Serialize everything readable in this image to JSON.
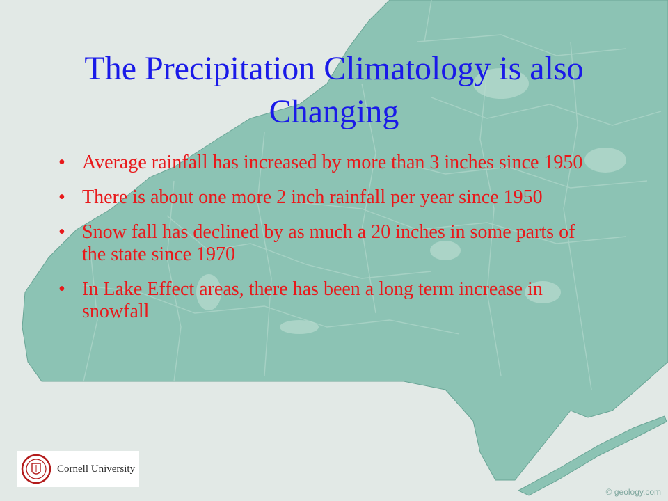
{
  "slide": {
    "title": "The Precipitation Climatology is also Changing",
    "bullets": [
      "Average rainfall has increased by more than 3 inches since 1950",
      "There is about one more 2 inch rainfall per year since 1950",
      "Snow fall has declined by as much a 20 inches in some parts of the state since 1970",
      "In Lake Effect areas, there has been a long term increase in snowfall"
    ],
    "bullet_glyph": "•",
    "logo_text": "Cornell University",
    "watermark": "© geology.com"
  },
  "colors": {
    "title": "#1a1ae8",
    "bullet_text": "#e8191b",
    "map_fill": "#8cc3b4",
    "background": "#dfe7e4"
  }
}
